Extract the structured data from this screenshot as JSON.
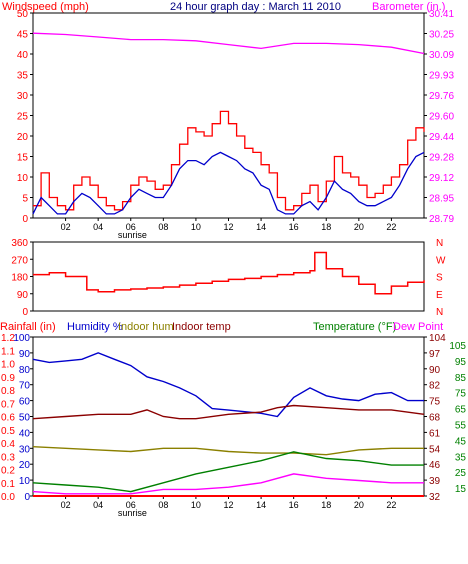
{
  "colors": {
    "wind": "#ff0000",
    "gust": "#ff0000",
    "wind_avg": "#0000cc",
    "barometer": "#ff00ff",
    "direction": "#ff0000",
    "humidity": "#0000cc",
    "indoor_hum": "#8b8000",
    "indoor_temp": "#8b0000",
    "temperature": "#008000",
    "dew_point": "#ff00ff",
    "rainfall": "#ff0000",
    "title": "#000080",
    "axis": "#000000"
  },
  "chart_data": [
    {
      "type": "line",
      "panel": "wind-barometer",
      "title": "24 hour graph day : March 11 2010",
      "left_label": "Windspeed (mph)",
      "right_label": "Barometer (in.)",
      "left_ticks": [
        "0",
        "5",
        "10",
        "15",
        "20",
        "25",
        "30",
        "35",
        "40",
        "45",
        "50"
      ],
      "right_ticks": [
        "28.79",
        "28.95",
        "29.12",
        "29.28",
        "29.44",
        "29.60",
        "29.76",
        "29.93",
        "30.09",
        "30.25",
        "30.41"
      ],
      "x_ticks": [
        "02",
        "04",
        "06",
        "08",
        "10",
        "12",
        "14",
        "16",
        "18",
        "20",
        "22"
      ],
      "x_marker": "sunrise",
      "ylim_left": [
        0,
        50
      ],
      "ylim_right": [
        28.79,
        30.41
      ],
      "series": [
        {
          "key": "gust",
          "x": [
            0,
            0.5,
            1,
            1.5,
            2,
            2.5,
            3,
            3.5,
            4,
            4.5,
            5,
            5.5,
            6,
            6.5,
            7,
            7.5,
            8,
            8.5,
            9,
            9.5,
            10,
            10.5,
            11,
            11.5,
            12,
            12.5,
            13,
            13.5,
            14,
            14.5,
            15,
            15.5,
            16,
            16.5,
            17,
            17.5,
            18,
            18.5,
            19,
            19.5,
            20,
            20.5,
            21,
            21.5,
            22,
            22.5,
            23,
            23.5,
            24
          ],
          "y": [
            3,
            11,
            5,
            3,
            2,
            8,
            10,
            8,
            5,
            3,
            2,
            4,
            8,
            10,
            9,
            7,
            8,
            13,
            18,
            22,
            21,
            20,
            23,
            26,
            23,
            20,
            17,
            16,
            13,
            11,
            5,
            2,
            3,
            6,
            8,
            4,
            9,
            15,
            11,
            10,
            8,
            5,
            6,
            8,
            10,
            13,
            19,
            22,
            21
          ]
        },
        {
          "key": "wind_avg",
          "x": [
            0,
            0.5,
            1,
            1.5,
            2,
            2.5,
            3,
            3.5,
            4,
            4.5,
            5,
            5.5,
            6,
            6.5,
            7,
            7.5,
            8,
            8.5,
            9,
            9.5,
            10,
            10.5,
            11,
            11.5,
            12,
            12.5,
            13,
            13.5,
            14,
            14.5,
            15,
            15.5,
            16,
            16.5,
            17,
            17.5,
            18,
            18.5,
            19,
            19.5,
            20,
            20.5,
            21,
            21.5,
            22,
            22.5,
            23,
            23.5,
            24
          ],
          "y": [
            1,
            5,
            3,
            1,
            1,
            4,
            6,
            5,
            3,
            1,
            1,
            2,
            5,
            7,
            6,
            5,
            5,
            8,
            12,
            14,
            14,
            13,
            15,
            16,
            15,
            14,
            12,
            11,
            8,
            7,
            2,
            1,
            1,
            3,
            4,
            2,
            5,
            9,
            7,
            6,
            4,
            3,
            3,
            4,
            5,
            8,
            12,
            15,
            16
          ]
        },
        {
          "key": "barometer",
          "x": [
            0,
            2,
            4,
            6,
            8,
            10,
            12,
            14,
            16,
            18,
            20,
            22,
            24
          ],
          "y": [
            30.25,
            30.24,
            30.22,
            30.2,
            30.2,
            30.19,
            30.16,
            30.13,
            30.17,
            30.17,
            30.16,
            30.14,
            30.09
          ]
        }
      ]
    },
    {
      "type": "line",
      "panel": "direction",
      "left_ticks": [
        "0",
        "90",
        "180",
        "270",
        "360"
      ],
      "right_ticks": [
        "N",
        "E",
        "S",
        "W",
        "N"
      ],
      "ylim": [
        0,
        360
      ],
      "series": [
        {
          "key": "direction",
          "x": [
            0,
            1,
            2,
            3,
            3.3,
            4,
            5,
            6,
            7,
            8,
            9,
            10,
            11,
            12,
            13,
            14,
            15,
            16,
            17,
            17.3,
            18,
            19,
            20,
            21,
            22,
            23,
            24
          ],
          "y": [
            190,
            200,
            180,
            180,
            110,
            100,
            110,
            115,
            120,
            125,
            135,
            145,
            155,
            165,
            170,
            180,
            190,
            200,
            210,
            305,
            220,
            180,
            140,
            90,
            130,
            150,
            160
          ]
        }
      ]
    },
    {
      "type": "line",
      "panel": "climate",
      "labels": {
        "rainfall": "Rainfall (in)",
        "humidity": "Humidity %",
        "indoor_hum": "Indoor hum",
        "indoor_temp": "Indoor temp",
        "temperature": "Temperature (°F)",
        "dew_point": "Dew Point"
      },
      "rain_ticks": [
        "0.0",
        "0.1",
        "0.2",
        "0.3",
        "0.4",
        "0.5",
        "0.6",
        "0.7",
        "0.8",
        "0.9",
        "1.0",
        "1.1",
        "1.2"
      ],
      "hum_ticks": [
        "0",
        "10",
        "20",
        "30",
        "40",
        "50",
        "60",
        "70",
        "80",
        "90",
        "100"
      ],
      "temp_ticks_a": [
        "32",
        "39",
        "46",
        "54",
        "61",
        "68",
        "75",
        "82",
        "90",
        "97",
        "104"
      ],
      "temp_ticks_b": [
        "15",
        "25",
        "35",
        "45",
        "55",
        "65",
        "75",
        "85",
        "95",
        "105"
      ],
      "x_ticks": [
        "02",
        "04",
        "06",
        "08",
        "10",
        "12",
        "14",
        "16",
        "18",
        "20",
        "22"
      ],
      "x_marker": "sunrise",
      "series": [
        {
          "key": "humidity",
          "unit": "%",
          "x": [
            0,
            1,
            2,
            3,
            4,
            5,
            6,
            7,
            8,
            9,
            10,
            11,
            12,
            13,
            14,
            15,
            16,
            17,
            18,
            19,
            20,
            21,
            22,
            23,
            24
          ],
          "y": [
            86,
            84,
            85,
            86,
            90,
            86,
            82,
            75,
            72,
            68,
            63,
            55,
            54,
            53,
            52,
            50,
            62,
            68,
            63,
            61,
            60,
            64,
            65,
            60,
            60
          ]
        },
        {
          "key": "indoor_temp",
          "unit": "°F",
          "x": [
            0,
            2,
            4,
            6,
            7,
            8,
            9,
            10,
            12,
            14,
            15,
            16,
            18,
            20,
            22,
            24
          ],
          "y": [
            67,
            68,
            69,
            69,
            71,
            68,
            67,
            67,
            69,
            70,
            72,
            73,
            72,
            71,
            71,
            69
          ]
        },
        {
          "key": "indoor_hum",
          "unit": "%",
          "x": [
            0,
            2,
            4,
            6,
            8,
            10,
            12,
            14,
            16,
            18,
            20,
            22,
            24
          ],
          "y": [
            31,
            30,
            29,
            28,
            30,
            30,
            28,
            27,
            27,
            26,
            29,
            30,
            30
          ]
        },
        {
          "key": "temperature",
          "unit": "°F",
          "x": [
            0,
            2,
            4,
            6,
            8,
            10,
            12,
            14,
            16,
            18,
            20,
            22,
            24
          ],
          "y": [
            38,
            37,
            36,
            34,
            38,
            42,
            45,
            48,
            52,
            49,
            48,
            46,
            46
          ]
        },
        {
          "key": "dew_point",
          "unit": "°F",
          "x": [
            0,
            2,
            4,
            6,
            8,
            10,
            12,
            14,
            16,
            18,
            20,
            22,
            24
          ],
          "y": [
            34,
            33,
            33,
            33,
            35,
            35,
            36,
            38,
            42,
            40,
            39,
            38,
            38
          ]
        },
        {
          "key": "rainfall",
          "unit": "in",
          "x": [
            0,
            24
          ],
          "y": [
            0,
            0
          ]
        }
      ]
    }
  ]
}
